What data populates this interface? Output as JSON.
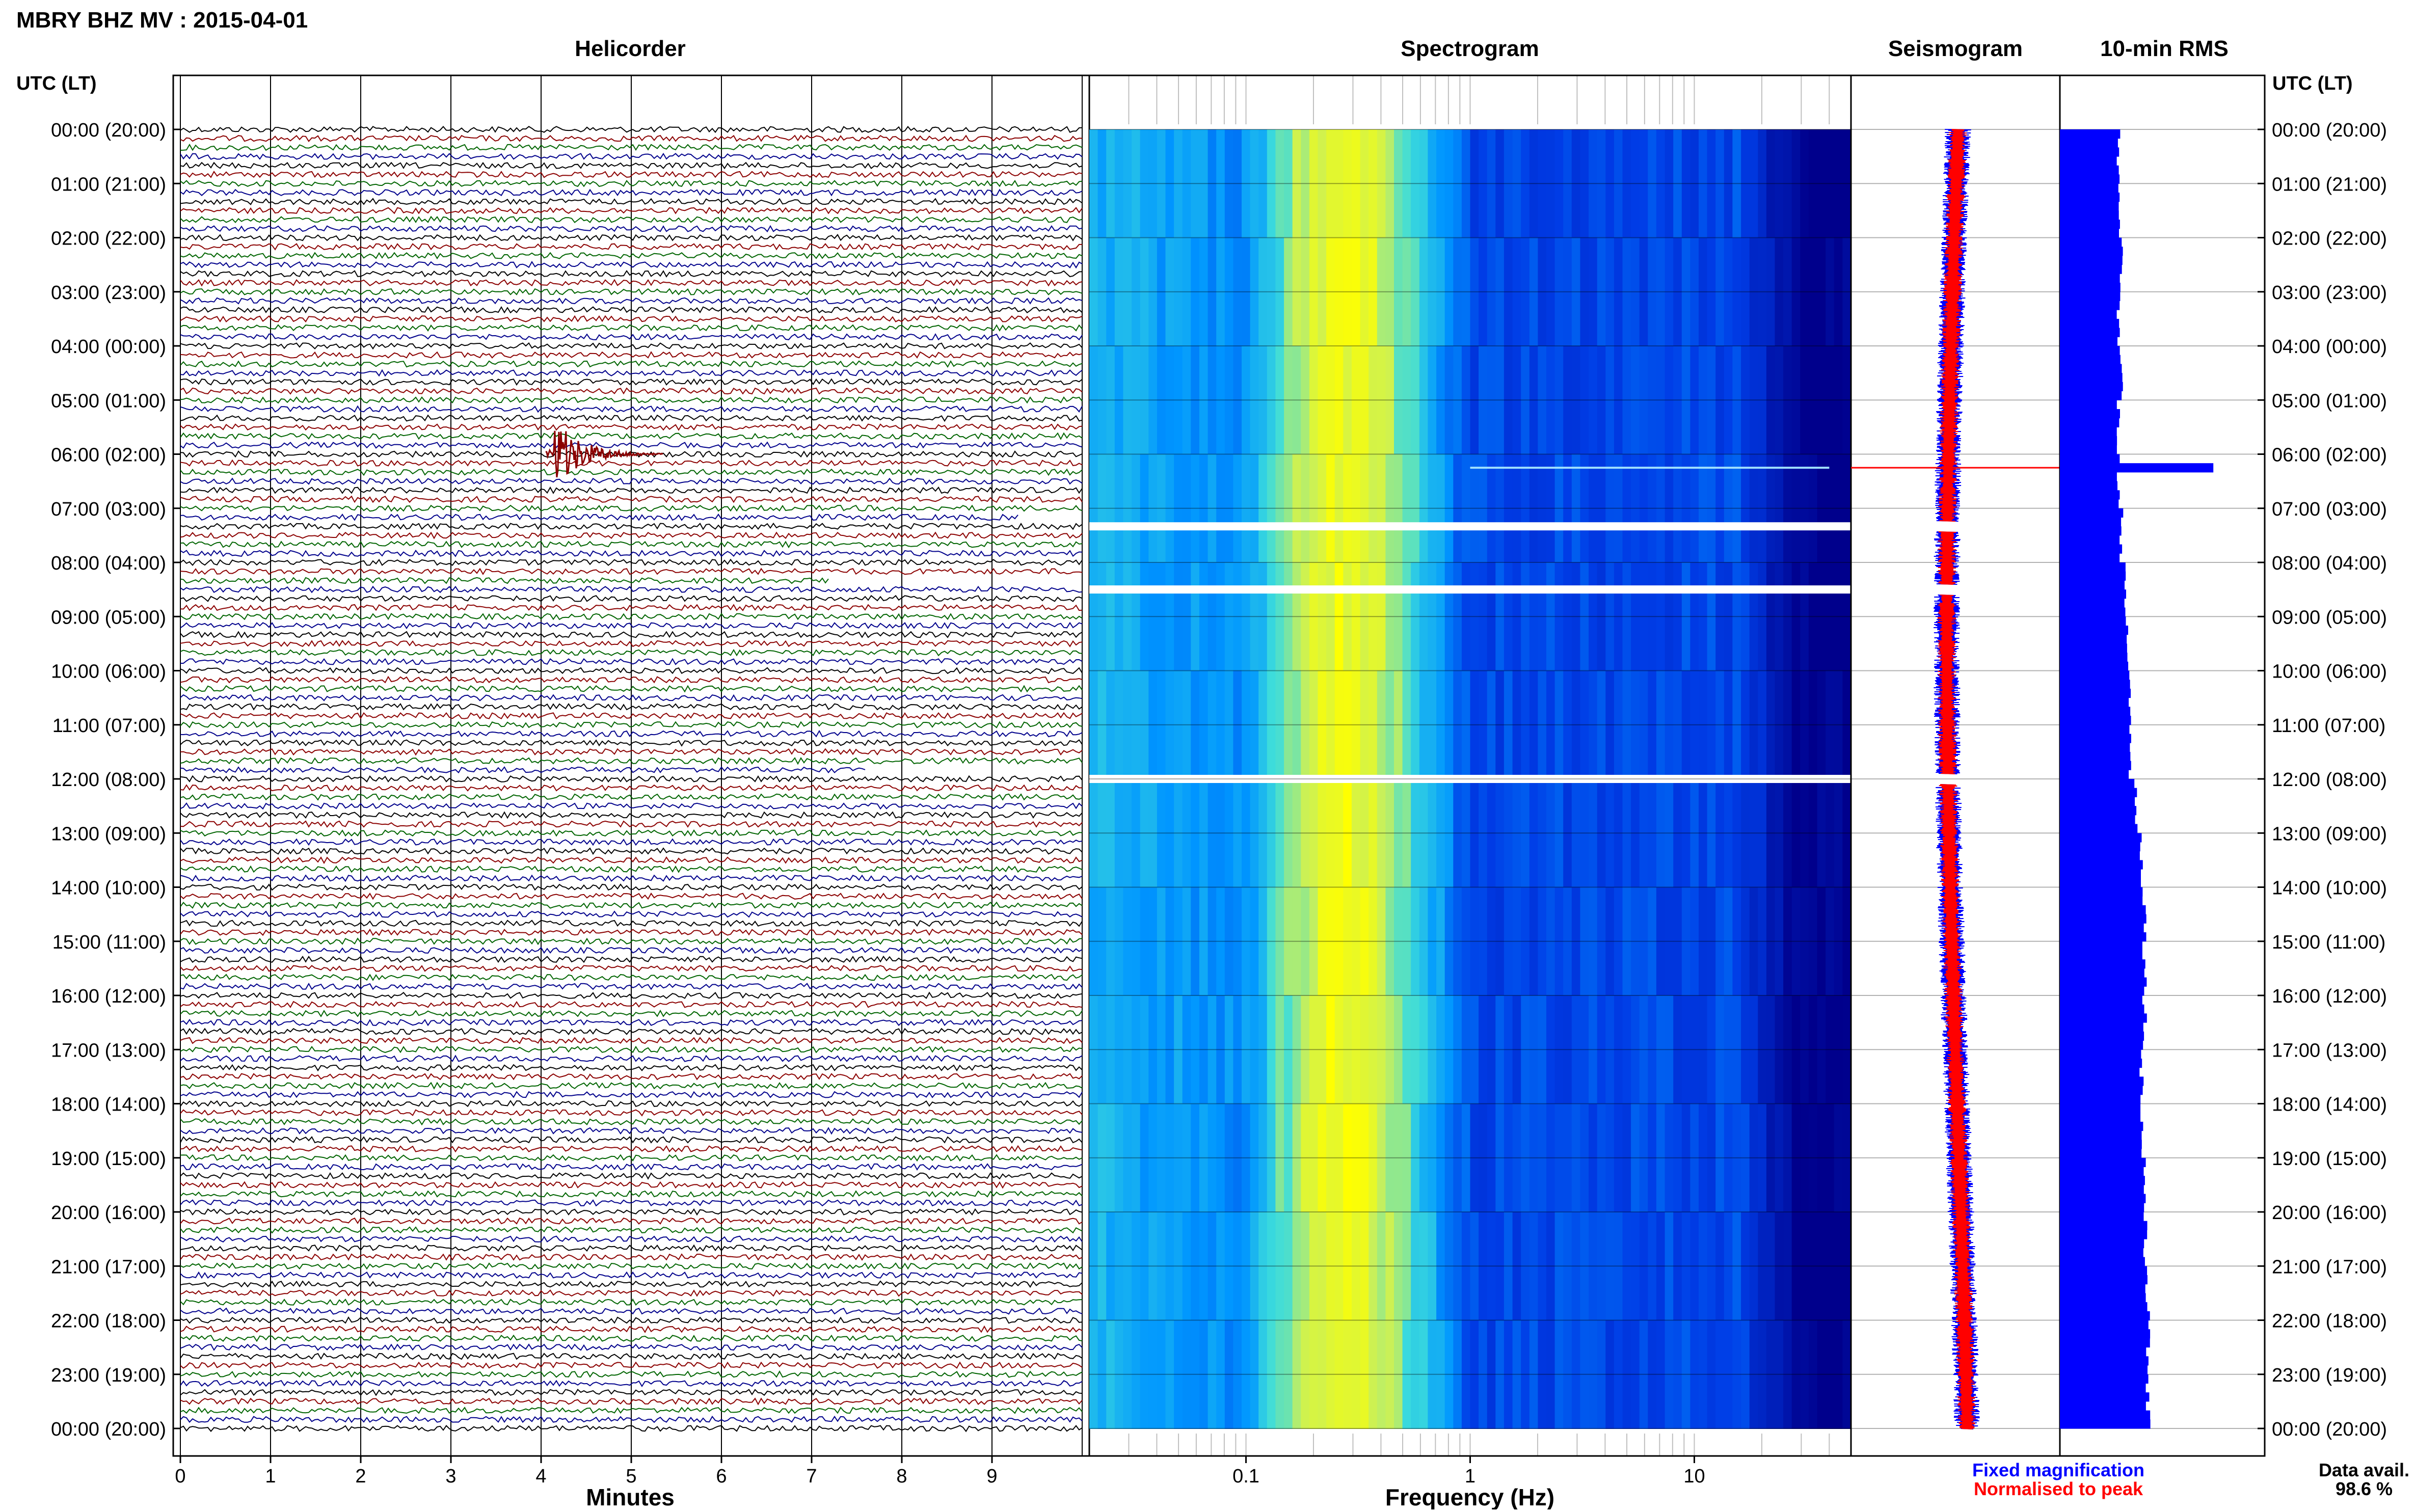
{
  "header": {
    "title": "MBRY BHZ MV : 2015-04-01",
    "utc_label": "UTC (LT)",
    "panels": {
      "helicorder": "Helicorder",
      "spectrogram": "Spectrogram",
      "seismogram": "Seismogram",
      "rms": "10-min RMS"
    }
  },
  "time_labels": [
    "00:00 (20:00)",
    "01:00 (21:00)",
    "02:00 (22:00)",
    "03:00 (23:00)",
    "04:00 (00:00)",
    "05:00 (01:00)",
    "06:00 (02:00)",
    "07:00 (03:00)",
    "08:00 (04:00)",
    "09:00 (05:00)",
    "10:00 (06:00)",
    "11:00 (07:00)",
    "12:00 (08:00)",
    "13:00 (09:00)",
    "14:00 (10:00)",
    "15:00 (11:00)",
    "16:00 (12:00)",
    "17:00 (13:00)",
    "18:00 (14:00)",
    "19:00 (15:00)",
    "20:00 (16:00)",
    "21:00 (17:00)",
    "22:00 (18:00)",
    "23:00 (19:00)",
    "00:00 (20:00)"
  ],
  "footer": {
    "minutes_label": "Minutes",
    "frequency_label": "Frequency (Hz)",
    "legend_fixed": "Fixed magnification",
    "legend_normalised": "Normalised to peak",
    "data_avail_label": "Data avail.",
    "data_avail_value": "98.6 %"
  },
  "colors": {
    "trace_cycle": [
      "#000000",
      "#8b0000",
      "#006400",
      "#00008b"
    ],
    "event": "#8b0000",
    "fixed_magnification": "#0000ff",
    "normalised_to_peak": "#ff0000",
    "rms_bar": "#0000ff",
    "spectrogram_background": "#00008b"
  },
  "chart_data": [
    {
      "type": "line",
      "name": "helicorder",
      "title": "Helicorder",
      "xlabel": "Minutes",
      "x_ticks": [
        "0",
        "1",
        "2",
        "3",
        "4",
        "5",
        "6",
        "7",
        "8",
        "9"
      ],
      "xlim": [
        0,
        10
      ],
      "rows_per_hour": 6,
      "hours": 24,
      "event": {
        "utc_time": "06:00",
        "minute": 4.15,
        "description": "large transient"
      },
      "gaps": [
        {
          "utc_start": "07:10",
          "minute_start": 9.3
        },
        {
          "utc_start": "08:20",
          "minute_start": 7.2
        },
        {
          "utc_start": "11:50",
          "minute_start": 7.6
        }
      ]
    },
    {
      "type": "heatmap",
      "name": "spectrogram",
      "title": "Spectrogram",
      "xlabel": "Frequency (Hz)",
      "x_scale": "log",
      "xlim": [
        0.02,
        50
      ],
      "x_ticks": [
        "0.1",
        "1",
        "10"
      ],
      "peak_band_hz": [
        0.2,
        0.35
      ],
      "gaps_utc": [
        "07:20",
        "08:30",
        "12:00"
      ],
      "event_line": {
        "utc": "06:15",
        "freq_range_hz": [
          1.0,
          40
        ]
      }
    },
    {
      "type": "line",
      "name": "seismogram",
      "title": "Seismogram",
      "series": [
        {
          "name": "Fixed magnification",
          "color": "#0000ff"
        },
        {
          "name": "Normalised to peak",
          "color": "#ff0000"
        }
      ],
      "event_utc": "06:15"
    },
    {
      "type": "bar",
      "name": "rms",
      "title": "10-min RMS",
      "orientation": "horizontal",
      "bin_minutes": 10,
      "hourly_values": [
        1.0,
        1.0,
        1.05,
        1.0,
        1.05,
        1.0,
        2.6,
        1.05,
        1.1,
        1.15,
        1.2,
        1.2,
        1.3,
        1.4,
        1.45,
        1.45,
        1.45,
        1.4,
        1.4,
        1.45,
        1.45,
        1.5,
        1.5,
        1.5
      ],
      "peak": {
        "utc": "06:10",
        "value": 2.6
      }
    }
  ]
}
